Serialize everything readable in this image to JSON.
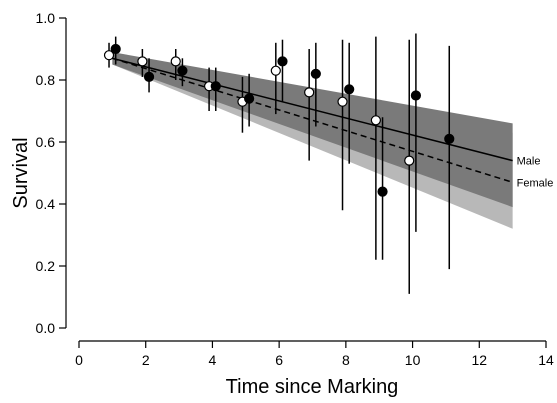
{
  "chart_data": {
    "type": "scatter",
    "title": "",
    "xlabel": "Time since Marking",
    "ylabel": "Survival",
    "xlim": [
      0,
      14
    ],
    "ylim": [
      0,
      1.0
    ],
    "xticks": [
      "0",
      "2",
      "4",
      "6",
      "8",
      "10",
      "12",
      "14"
    ],
    "yticks": [
      "0.0",
      "0.2",
      "0.4",
      "0.6",
      "0.8",
      "1.0"
    ],
    "grid": false,
    "legend": "inline labels at right end of fitted lines",
    "colors": {
      "female_band": "#b8b8b8",
      "male_band": "#7a7a7a",
      "overlap_band": "#6f6f6f",
      "male_points": "#000000",
      "female_points": "#ffffff"
    },
    "series": [
      {
        "name": "Male",
        "marker": "filled-circle",
        "points": [
          {
            "x": 1.1,
            "y": 0.9,
            "lo": 0.85,
            "hi": 0.94
          },
          {
            "x": 2.1,
            "y": 0.81,
            "lo": 0.76,
            "hi": 0.87
          },
          {
            "x": 3.1,
            "y": 0.83,
            "lo": 0.78,
            "hi": 0.87
          },
          {
            "x": 4.1,
            "y": 0.78,
            "lo": 0.7,
            "hi": 0.84
          },
          {
            "x": 5.1,
            "y": 0.74,
            "lo": 0.65,
            "hi": 0.82
          },
          {
            "x": 6.1,
            "y": 0.86,
            "lo": 0.73,
            "hi": 0.93
          },
          {
            "x": 7.1,
            "y": 0.82,
            "lo": 0.65,
            "hi": 0.92
          },
          {
            "x": 8.1,
            "y": 0.77,
            "lo": 0.53,
            "hi": 0.92
          },
          {
            "x": 9.1,
            "y": 0.44,
            "lo": 0.22,
            "hi": 0.68
          },
          {
            "x": 10.1,
            "y": 0.75,
            "lo": 0.31,
            "hi": 0.95
          },
          {
            "x": 11.1,
            "y": 0.61,
            "lo": 0.19,
            "hi": 0.91
          }
        ],
        "fit": {
          "x": [
            1,
            13
          ],
          "y": [
            0.87,
            0.54
          ],
          "band_lo": [
            0.85,
            0.39
          ],
          "band_hi": [
            0.89,
            0.66
          ]
        }
      },
      {
        "name": "Female",
        "marker": "open-circle",
        "points": [
          {
            "x": 0.9,
            "y": 0.88,
            "lo": 0.84,
            "hi": 0.92
          },
          {
            "x": 1.9,
            "y": 0.86,
            "lo": 0.81,
            "hi": 0.9
          },
          {
            "x": 2.9,
            "y": 0.86,
            "lo": 0.8,
            "hi": 0.9
          },
          {
            "x": 3.9,
            "y": 0.78,
            "lo": 0.7,
            "hi": 0.84
          },
          {
            "x": 4.9,
            "y": 0.73,
            "lo": 0.63,
            "hi": 0.81
          },
          {
            "x": 5.9,
            "y": 0.83,
            "lo": 0.69,
            "hi": 0.92
          },
          {
            "x": 6.9,
            "y": 0.76,
            "lo": 0.54,
            "hi": 0.9
          },
          {
            "x": 7.9,
            "y": 0.73,
            "lo": 0.38,
            "hi": 0.93
          },
          {
            "x": 8.9,
            "y": 0.67,
            "lo": 0.22,
            "hi": 0.94
          },
          {
            "x": 9.9,
            "y": 0.54,
            "lo": 0.11,
            "hi": 0.93
          }
        ],
        "fit": {
          "x": [
            1,
            13
          ],
          "y": [
            0.87,
            0.47
          ],
          "band_lo": [
            0.85,
            0.32
          ],
          "band_hi": [
            0.89,
            0.63
          ]
        }
      }
    ]
  }
}
